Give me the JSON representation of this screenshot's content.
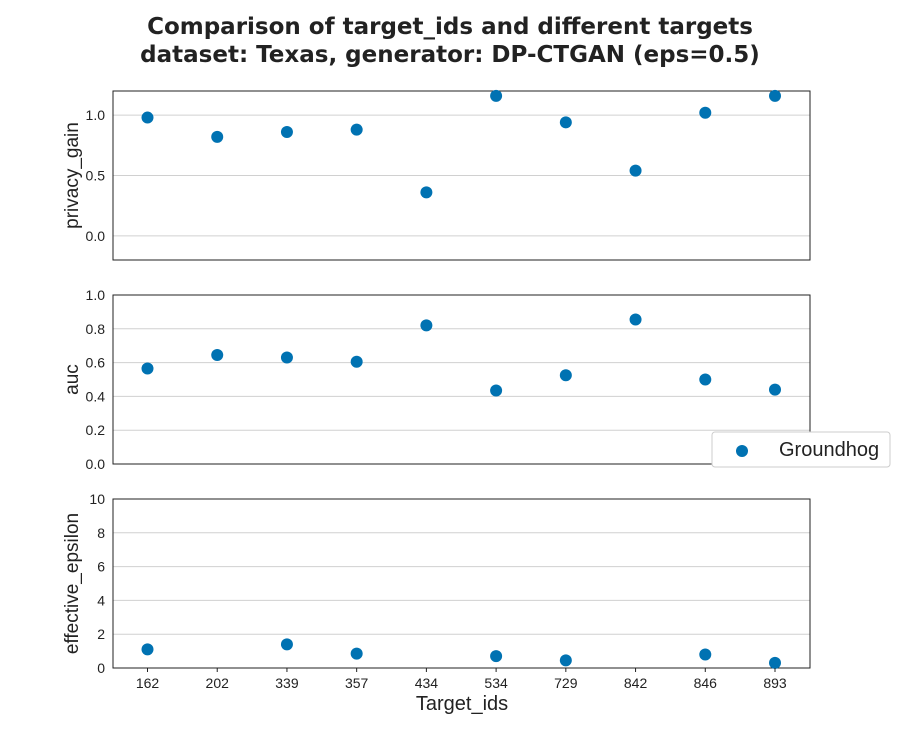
{
  "chart_data": {
    "type": "scatter",
    "title": "Comparison of target_ids and different targets",
    "subtitle": "dataset: Texas, generator: DP-CTGAN (eps=0.5)",
    "xlabel": "Target_ids",
    "categories": [
      "162",
      "202",
      "339",
      "357",
      "434",
      "534",
      "729",
      "842",
      "846",
      "893"
    ],
    "legend": {
      "position": "right",
      "entries": [
        "Groundhog"
      ]
    },
    "color": "#0072b2",
    "grid": true,
    "panels": [
      {
        "ylabel": "privacy_gain",
        "ylim": [
          -0.2,
          1.2
        ],
        "yticks": [
          "0.0",
          "0.5",
          "1.0"
        ],
        "series": [
          {
            "name": "Groundhog",
            "values": [
              0.98,
              0.82,
              0.86,
              0.88,
              0.36,
              1.16,
              0.94,
              0.54,
              1.02,
              1.16
            ]
          }
        ]
      },
      {
        "ylabel": "auc",
        "ylim": [
          0.0,
          1.0
        ],
        "yticks": [
          "0.0",
          "0.2",
          "0.4",
          "0.6",
          "0.8",
          "1.0"
        ],
        "series": [
          {
            "name": "Groundhog",
            "values": [
              0.565,
              0.645,
              0.63,
              0.605,
              0.82,
              0.435,
              0.525,
              0.855,
              0.5,
              0.44
            ]
          }
        ]
      },
      {
        "ylabel": "effective_epsilon",
        "ylim": [
          0,
          10
        ],
        "yticks": [
          "0",
          "2",
          "4",
          "6",
          "8",
          "10"
        ],
        "series": [
          {
            "name": "Groundhog",
            "values": [
              1.1,
              null,
              1.4,
              0.85,
              null,
              0.7,
              0.45,
              null,
              0.8,
              0.3
            ]
          }
        ]
      }
    ]
  }
}
